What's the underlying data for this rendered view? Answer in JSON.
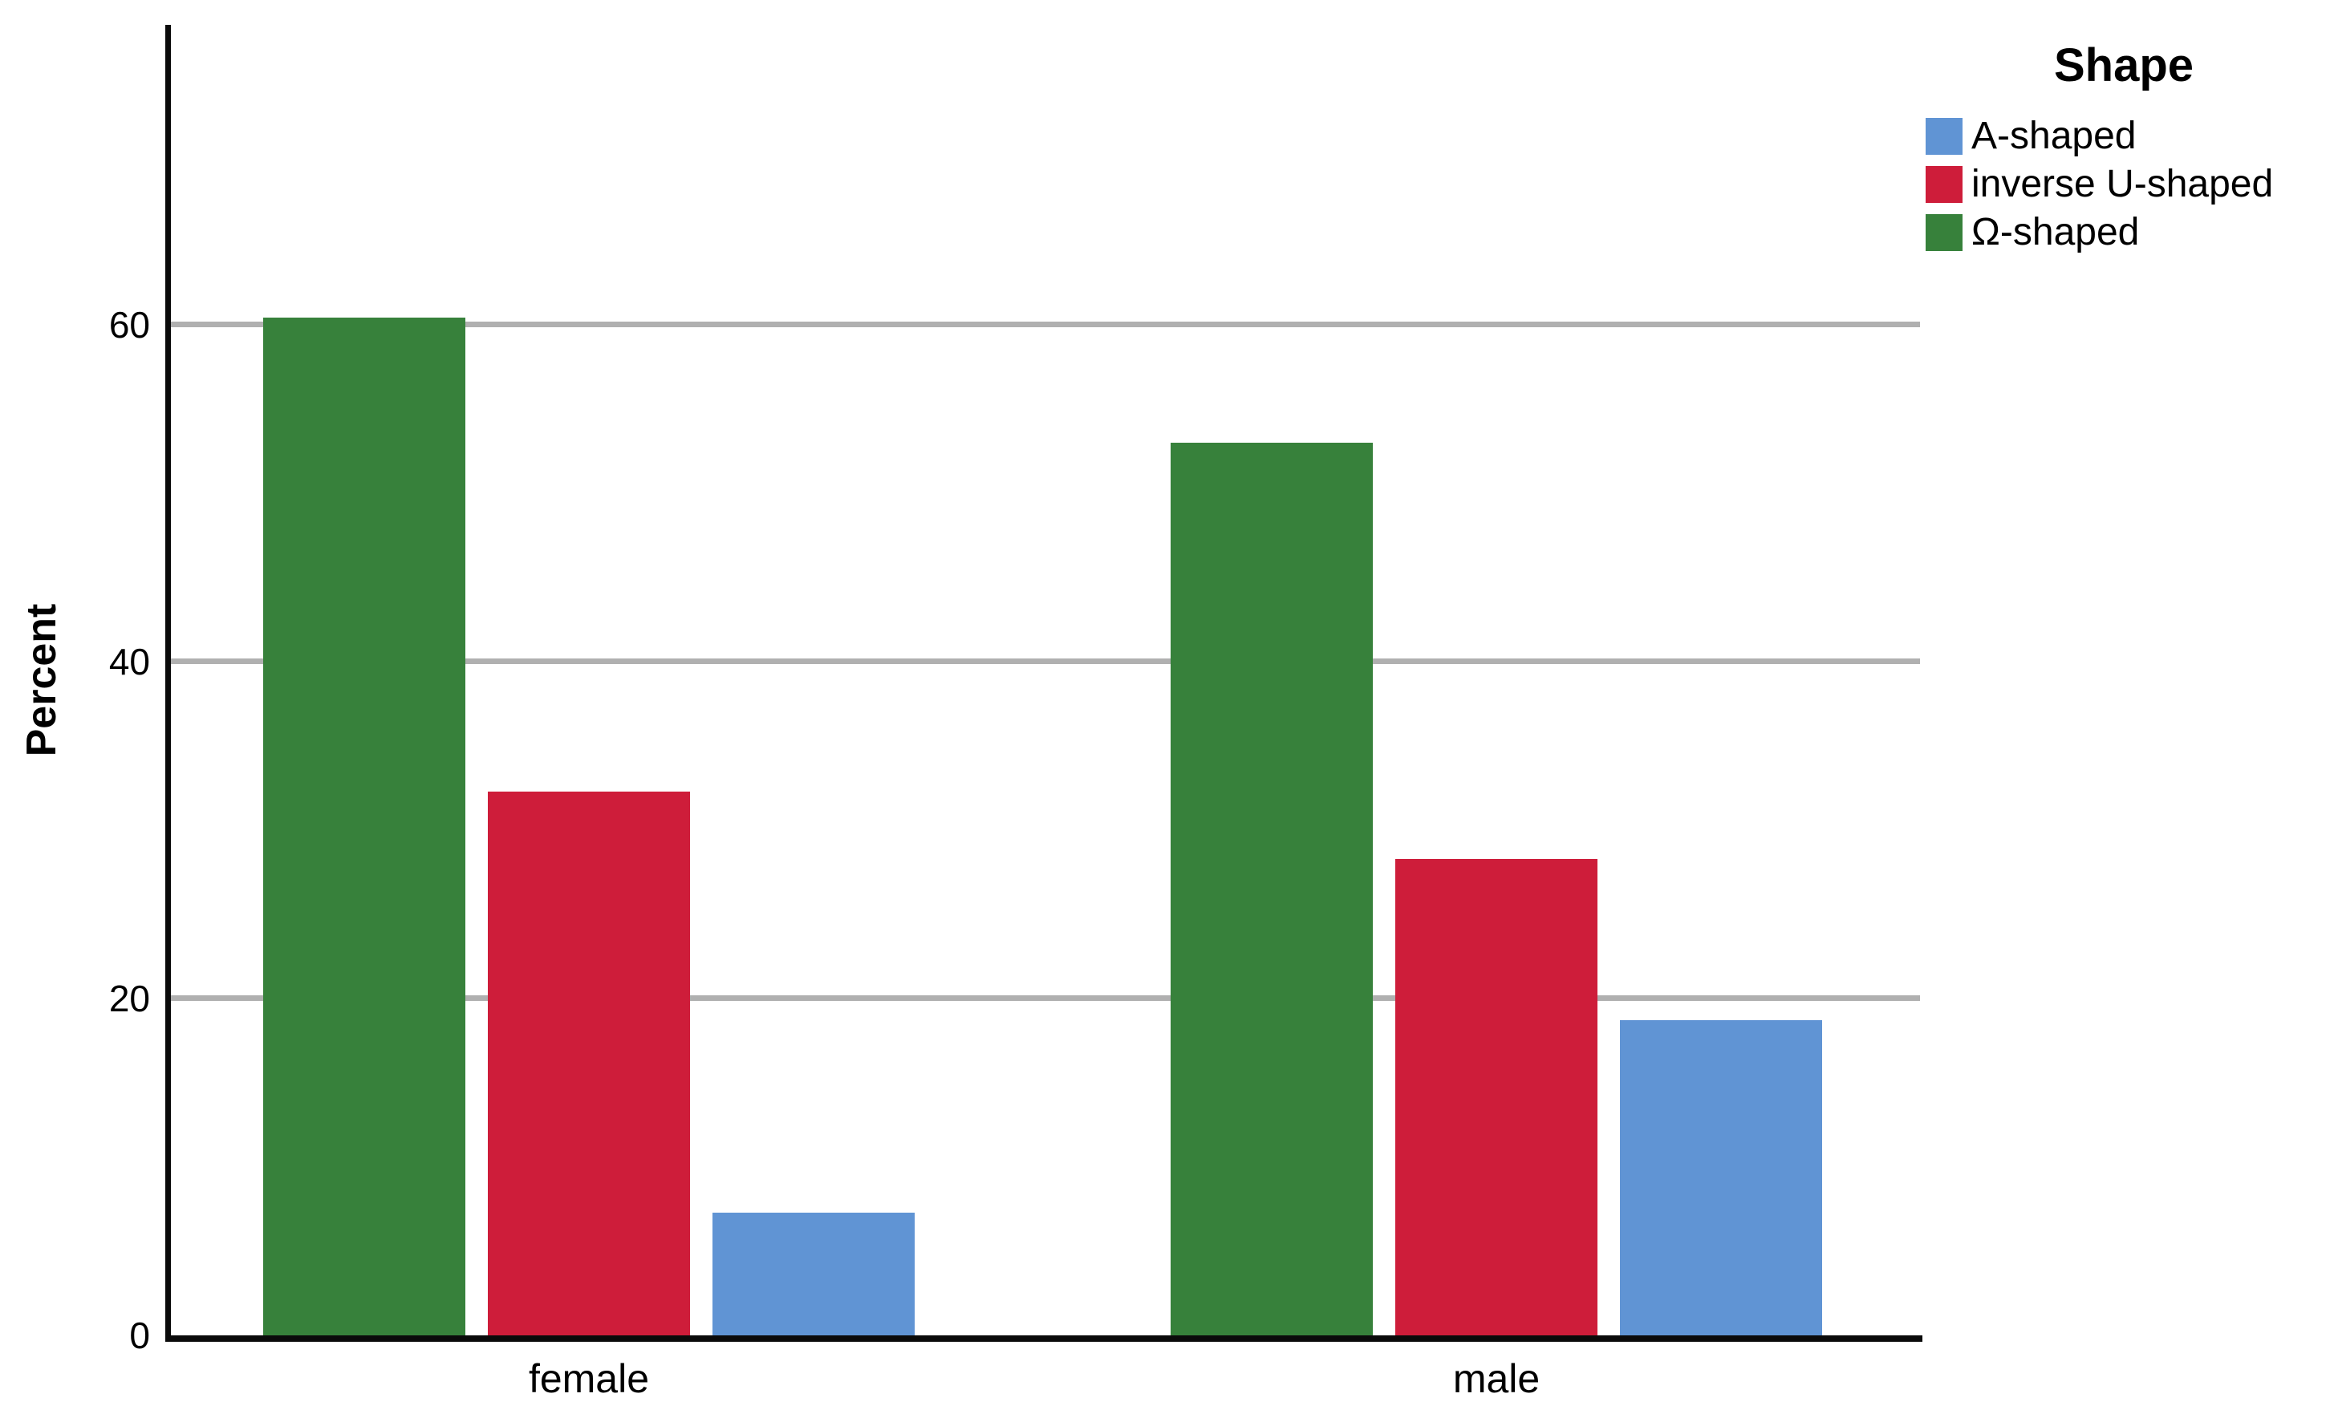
{
  "chart_data": {
    "type": "bar",
    "subtype": "clustered",
    "title": "",
    "xlabel": "",
    "ylabel": "Percent",
    "categories": [
      "female",
      "male"
    ],
    "series": [
      {
        "name": "A-shaped",
        "id": "a-shaped",
        "color": "#6094D4",
        "values": [
          7.3,
          18.7
        ]
      },
      {
        "name": "inverse U-shaped",
        "id": "inverse-u-shaped",
        "color": "#CE1D3A",
        "values": [
          32.3,
          28.3
        ]
      },
      {
        "name": "Ω-shaped",
        "id": "omega-shaped",
        "color": "#37813B",
        "values": [
          60.4,
          53.0
        ]
      }
    ],
    "cluster_draw_order": [
      "omega-shaped",
      "inverse-u-shaped",
      "a-shaped"
    ],
    "y_ticks": [
      0,
      20,
      40,
      60
    ],
    "y_gridlines": [
      20,
      40,
      60
    ],
    "ylim": [
      0,
      77.8
    ],
    "grid": "horizontal",
    "units": "percent",
    "legend": {
      "title": "Shape",
      "position": "top-right"
    },
    "colors": {
      "axis": "#0A0A0A",
      "gridline": "#B0B0B0",
      "text": "#000000",
      "background": "#FFFFFF"
    }
  }
}
